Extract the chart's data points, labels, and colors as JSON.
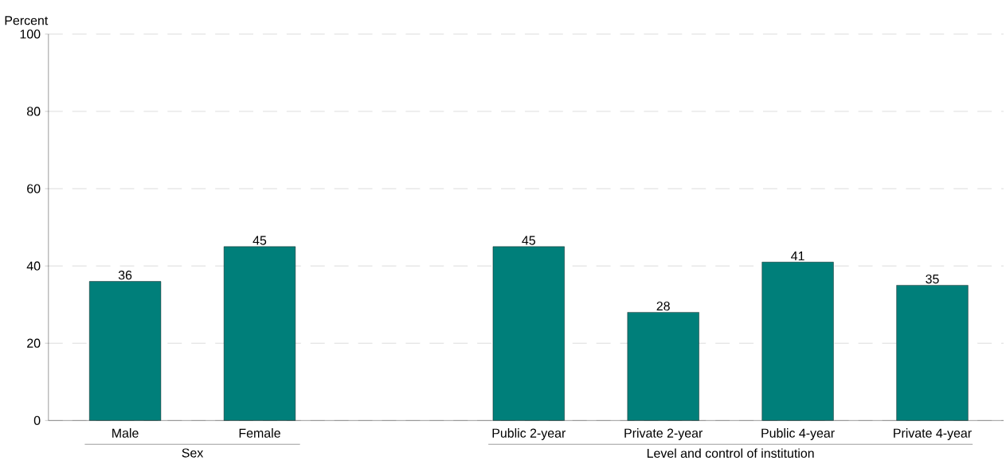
{
  "chart_data": {
    "type": "bar",
    "ylabel": "Percent",
    "categories": [
      "Male",
      "Female",
      null,
      "Public 2-year",
      "Private 2-year",
      "Public 4-year",
      "Private 4-year"
    ],
    "values": [
      36,
      45,
      null,
      45,
      28,
      41,
      35
    ],
    "color": "#007f7a",
    "ylim": [
      0,
      100
    ],
    "yticks": [
      0,
      20,
      40,
      60,
      80,
      100
    ],
    "grid": "y",
    "data_labels": true,
    "annotations": [
      "Sex",
      "Level and control of institution"
    ]
  }
}
